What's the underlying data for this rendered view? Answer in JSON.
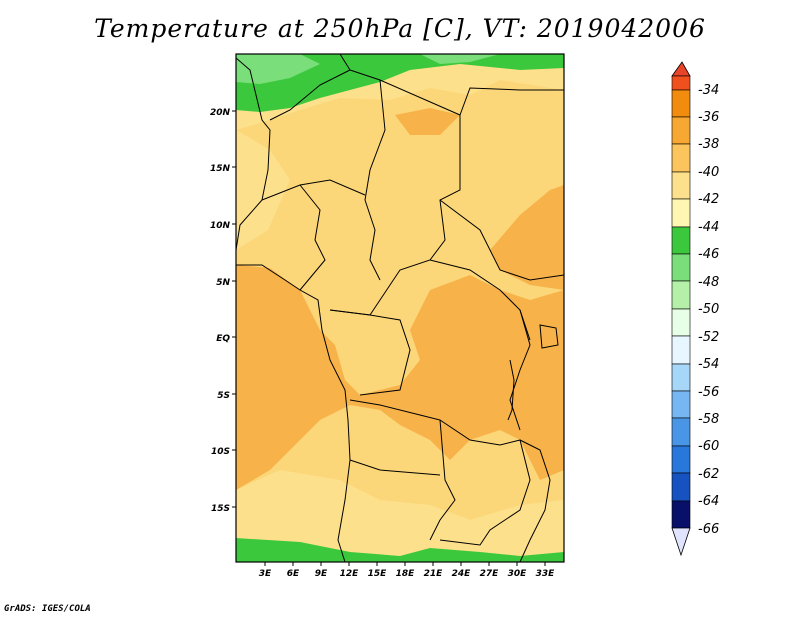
{
  "title": "Temperature at 250hPa [C], VT: 2019042006",
  "credit": "GrADS: IGES/COLA",
  "map": {
    "lon_range": [
      0,
      35
    ],
    "lat_range": [
      -20,
      25
    ],
    "x_ticks": [
      "3E",
      "6E",
      "9E",
      "12E",
      "15E",
      "18E",
      "21E",
      "24E",
      "27E",
      "30E",
      "33E"
    ],
    "y_ticks": [
      "20N",
      "15N",
      "10N",
      "5N",
      "EQ",
      "5S",
      "10S",
      "15S"
    ]
  },
  "colorbar": {
    "labels": [
      "-34",
      "-36",
      "-38",
      "-40",
      "-42",
      "-44",
      "-46",
      "-48",
      "-50",
      "-52",
      "-54",
      "-56",
      "-58",
      "-60",
      "-62",
      "-64",
      "-66"
    ],
    "colors": {
      "c34": "#f0501e",
      "c36": "#f28c0e",
      "c38": "#f7a832",
      "c40": "#fcc45c",
      "c42": "#fde08c",
      "c44": "#fef6b2",
      "c46": "#3cc83c",
      "c48": "#7ade7a",
      "c50": "#b4f0a8",
      "c52": "#e6ffe6",
      "c54": "#e8f6ff",
      "c56": "#a6d6f8",
      "c58": "#76b6f2",
      "c60": "#4a96e6",
      "c62": "#2878dc",
      "c64": "#1652c0",
      "c66": "#0a2896",
      "c68": "#08106a",
      "c70": "#e0e4ff"
    }
  }
}
